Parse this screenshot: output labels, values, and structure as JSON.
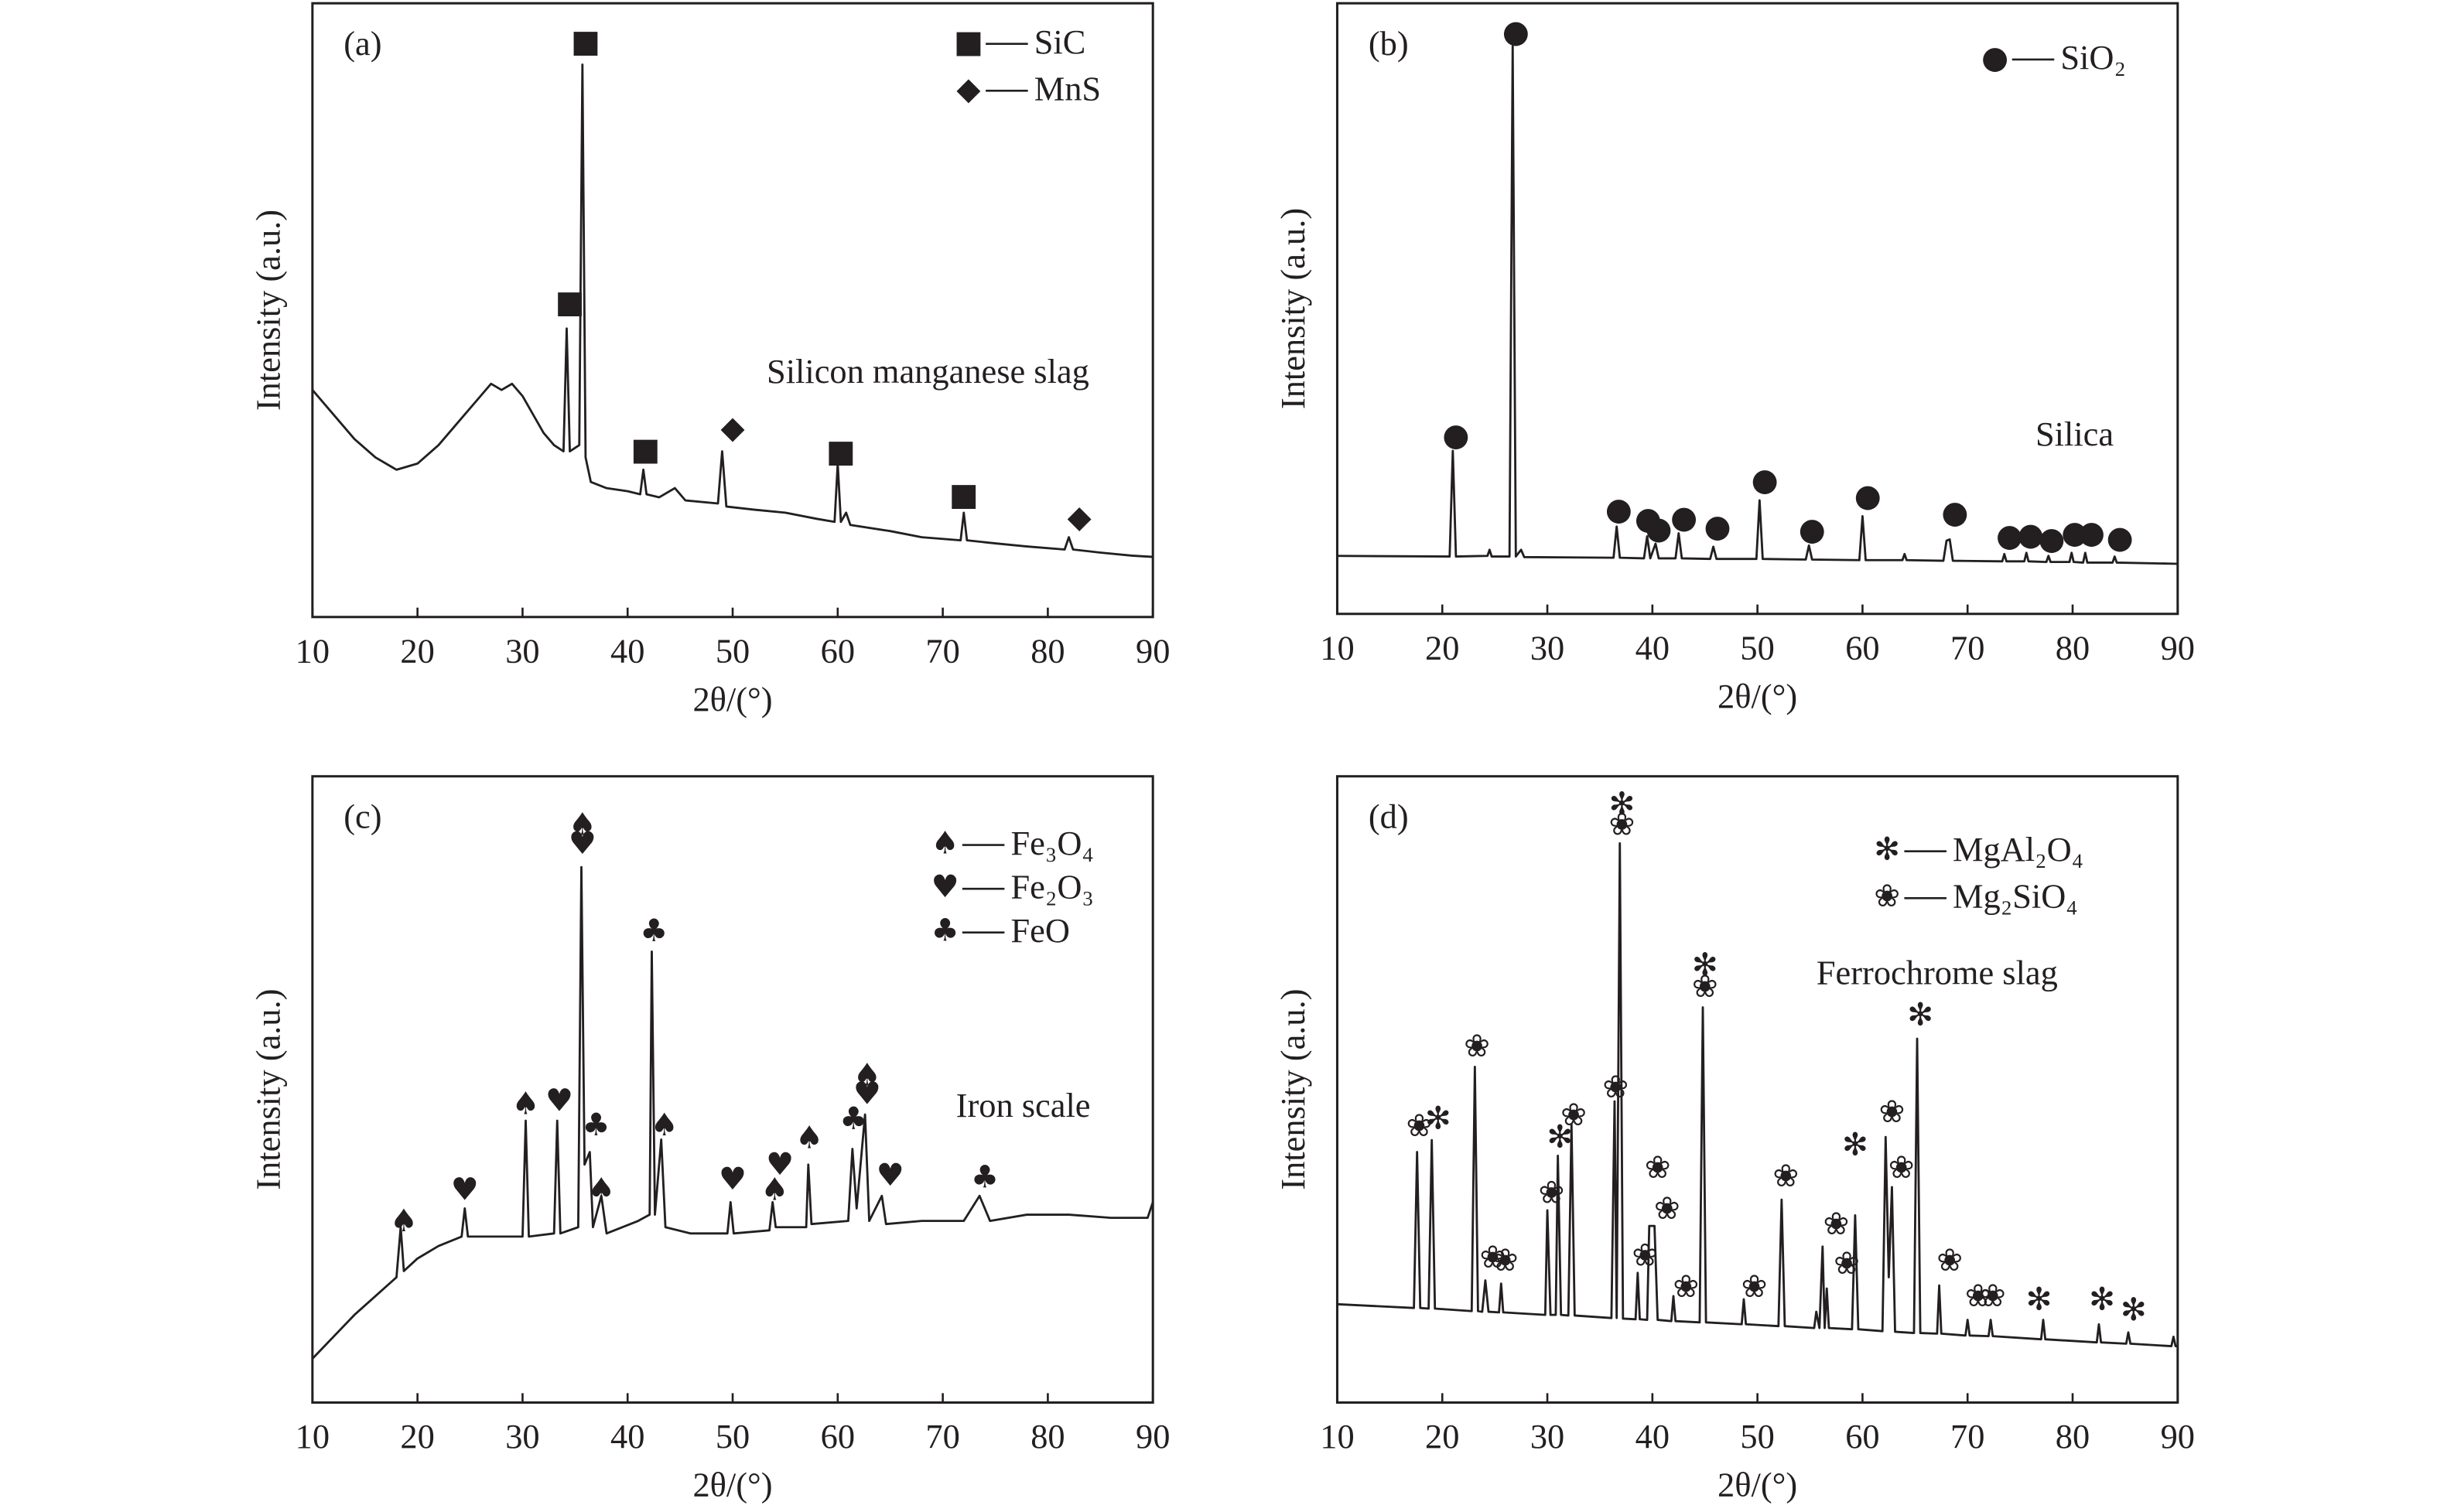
{
  "chart_data": [
    {
      "type": "line",
      "panel": "(a)",
      "annotation": "Silicon manganese slag",
      "xlabel": "2θ/(°)",
      "ylabel": "Intensity (a.u.)",
      "xlim": [
        10,
        90
      ],
      "xticks": [
        10,
        20,
        30,
        40,
        50,
        60,
        70,
        80,
        90
      ],
      "ylim": [
        0,
        100
      ],
      "color": "#231f20",
      "x": [
        10,
        12,
        14,
        16,
        18,
        20,
        22,
        24,
        26,
        27,
        28,
        29,
        30,
        31,
        32,
        33,
        33.9,
        34.2,
        34.5,
        35.4,
        35.7,
        36,
        36.5,
        38,
        40,
        41.2,
        41.5,
        41.8,
        43,
        44.5,
        45.5,
        48.6,
        49,
        49.4,
        52,
        55,
        58,
        59.7,
        60,
        60.3,
        60.8,
        61.2,
        65,
        68,
        71.7,
        72,
        72.3,
        75,
        78,
        81.6,
        82,
        82.4,
        85,
        88,
        90
      ],
      "values": [
        37,
        33,
        29,
        26,
        24,
        25,
        28,
        32,
        36,
        38,
        37,
        38,
        36,
        33,
        30,
        28,
        27,
        47,
        27,
        28,
        90,
        26,
        22,
        21,
        20.5,
        20,
        24,
        20,
        19.5,
        21,
        19,
        18.5,
        27,
        18,
        17.5,
        17,
        16,
        15.5,
        25,
        15.5,
        17,
        15,
        14,
        13,
        12.5,
        17,
        12.5,
        12,
        11.5,
        11,
        13,
        11,
        10.5,
        10,
        9.8
      ],
      "phases": [
        {
          "symbol": "■",
          "name": "SiC",
          "peaks_x": [
            34.5,
            36,
            41.7,
            60.3,
            72
          ],
          "peaks_y": [
            51,
            93.5,
            27,
            26.7,
            19.6
          ]
        },
        {
          "symbol": "◆",
          "name": "MnS",
          "peaks_x": [
            50,
            83
          ],
          "peaks_y": [
            30.5,
            16
          ]
        }
      ]
    },
    {
      "type": "line",
      "panel": "(b)",
      "annotation": "Silica",
      "xlabel": "2θ/(°)",
      "ylabel": "Intensity (a.u.)",
      "xlim": [
        10,
        90
      ],
      "xticks": [
        10,
        20,
        30,
        40,
        50,
        60,
        70,
        80,
        90
      ],
      "ylim": [
        0,
        100
      ],
      "color": "#231f20",
      "x": [
        10,
        20.7,
        21,
        21.3,
        24.3,
        24.5,
        24.7,
        26.4,
        26.7,
        27,
        27.5,
        27.8,
        36.3,
        36.6,
        36.9,
        39.2,
        39.5,
        39.8,
        40.3,
        40.6,
        42.2,
        42.5,
        42.8,
        45.5,
        45.8,
        46.1,
        49.9,
        50.2,
        50.5,
        54.6,
        54.9,
        55.2,
        59.7,
        60,
        60.3,
        63.8,
        64,
        64.2,
        67.7,
        68,
        68.3,
        68.6,
        73.3,
        73.5,
        73.7,
        75.4,
        75.6,
        75.8,
        77.5,
        77.7,
        77.9,
        79.7,
        79.9,
        80.1,
        81,
        81.2,
        81.4,
        83.8,
        84,
        84.2,
        90
      ],
      "values": [
        9.5,
        9.4,
        26.7,
        9.4,
        9.5,
        10.5,
        9.4,
        9.4,
        93,
        9.4,
        10.5,
        9.3,
        9.2,
        14.3,
        9.2,
        9.1,
        12.7,
        9.1,
        11.5,
        9.1,
        9.1,
        13.2,
        9.1,
        9,
        11,
        9,
        9,
        18.6,
        9,
        8.9,
        11.2,
        8.9,
        8.8,
        16,
        8.8,
        8.8,
        9.8,
        8.8,
        8.7,
        12,
        12.2,
        8.7,
        8.6,
        9.8,
        8.6,
        8.6,
        10,
        8.6,
        8.5,
        9.5,
        8.5,
        8.5,
        10,
        8.5,
        8.4,
        10,
        8.4,
        8.4,
        9.4,
        8.4,
        8.2
      ],
      "phases": [
        {
          "symbol": "●",
          "name": "SiO₂",
          "peaks_x": [
            21.3,
            27,
            36.8,
            39.6,
            40.6,
            43,
            46.2,
            50.7,
            55.2,
            60.5,
            68.8,
            74,
            76,
            78,
            80.2,
            81.8,
            84.5
          ],
          "peaks_y": [
            29,
            95,
            16.8,
            15.3,
            13.7,
            15.5,
            14,
            21.6,
            13.5,
            19,
            16.3,
            12.5,
            12.7,
            12,
            13,
            13,
            12.2
          ]
        }
      ]
    },
    {
      "type": "line",
      "panel": "(c)",
      "annotation": "Iron scale",
      "xlabel": "2θ/(°)",
      "ylabel": "Intensity (a.u.)",
      "xlim": [
        10,
        90
      ],
      "xticks": [
        10,
        20,
        30,
        40,
        50,
        60,
        70,
        80,
        90
      ],
      "ylim": [
        0,
        100
      ],
      "color": "#231f20",
      "x": [
        10,
        12,
        14,
        16,
        18,
        18.4,
        18.7,
        20,
        22,
        24.2,
        24.5,
        24.8,
        27,
        30,
        30.3,
        30.6,
        33,
        33.3,
        33.6,
        35.3,
        35.6,
        35.9,
        36.4,
        36.7,
        37.5,
        38,
        41,
        42.1,
        42.3,
        42.6,
        43.2,
        43.6,
        46,
        49.5,
        49.8,
        50.1,
        53.5,
        53.8,
        54.1,
        57,
        57.2,
        57.5,
        61,
        61.4,
        61.8,
        62.6,
        63,
        64.2,
        64.6,
        68,
        72,
        73.5,
        74.5,
        78,
        82,
        86,
        89.5,
        90
      ],
      "values": [
        7,
        10.5,
        14,
        17,
        20,
        28,
        21,
        23,
        25,
        26.5,
        31,
        26.5,
        26.5,
        26.5,
        45,
        26.5,
        27,
        45,
        27,
        28,
        85.5,
        38,
        40,
        28,
        33,
        27,
        29,
        30,
        72,
        30,
        42,
        28,
        27,
        27,
        32,
        27,
        27.5,
        32,
        28,
        28,
        38,
        28.5,
        29,
        40.5,
        31,
        46,
        29,
        33,
        28.5,
        29,
        29,
        33,
        29,
        30,
        30,
        29.5,
        29.5,
        32
      ],
      "phases": [
        {
          "symbol": "♠",
          "name": "Fe₃O₄",
          "peaks_x": [
            18.7,
            30.3,
            35.7,
            37.5,
            43.5,
            54,
            57.3,
            62.8
          ],
          "peaks_y": [
            28.7,
            47.4,
            92,
            33.7,
            44,
            33.7,
            42,
            52
          ]
        },
        {
          "symbol": "♥",
          "name": "Fe₂O₃",
          "peaks_x": [
            24.5,
            33.5,
            35.7,
            50,
            54.5,
            62.8,
            65
          ],
          "peaks_y": [
            33.7,
            47.9,
            89,
            35.4,
            37.7,
            49,
            36
          ]
        },
        {
          "symbol": "♣",
          "name": "FeO",
          "peaks_x": [
            37,
            42.5,
            61.5,
            74
          ],
          "peaks_y": [
            44,
            75,
            45,
            35.7
          ]
        }
      ]
    },
    {
      "type": "line",
      "panel": "(d)",
      "annotation": "Ferrochrome slag",
      "xlabel": "2θ/(°)",
      "ylabel": "Intensity (a.u.)",
      "xlim": [
        10,
        90
      ],
      "xticks": [
        10,
        20,
        30,
        40,
        50,
        60,
        70,
        80,
        90
      ],
      "ylim": [
        0,
        100
      ],
      "color": "#231f20",
      "x": [
        10,
        17.3,
        17.6,
        17.9,
        18.7,
        19,
        19.3,
        22.8,
        23.1,
        23.4,
        23.8,
        24.1,
        24.4,
        25.4,
        25.6,
        25.8,
        29.8,
        30,
        30.3,
        30.8,
        31,
        31.3,
        32,
        32.3,
        32.6,
        36.1,
        36.4,
        36.6,
        36.9,
        37.2,
        38.4,
        38.6,
        38.8,
        39.5,
        39.7,
        40.2,
        40.5,
        41.8,
        42,
        42.2,
        44.5,
        44.8,
        45.1,
        48.5,
        48.7,
        48.9,
        52,
        52.3,
        52.6,
        55.4,
        55.6,
        55.9,
        56.2,
        56.4,
        56.6,
        56.8,
        59,
        59.3,
        59.6,
        61.9,
        62.2,
        62.5,
        62.8,
        63.1,
        64.9,
        65.2,
        65.5,
        67.1,
        67.3,
        67.5,
        69.8,
        70,
        70.2,
        72,
        72.2,
        72.4,
        77,
        77.2,
        77.4,
        82.3,
        82.5,
        82.7,
        85.1,
        85.3,
        85.5,
        89.4,
        89.6,
        89.8,
        90
      ],
      "values": [
        15.7,
        15.1,
        40,
        15.1,
        15,
        41.9,
        15,
        14.6,
        53.6,
        14.6,
        14.5,
        19.5,
        14.5,
        14.4,
        19,
        14.4,
        14,
        30.7,
        14,
        14,
        39.4,
        14,
        13.9,
        44.4,
        13.9,
        13.5,
        48.1,
        13.5,
        89.3,
        13.4,
        13.3,
        20.7,
        13.3,
        13.2,
        28.2,
        28.2,
        13.2,
        13,
        17,
        13,
        12.8,
        63.1,
        12.8,
        12.5,
        16.5,
        12.5,
        12.2,
        32.4,
        12.2,
        11.9,
        14.5,
        11.9,
        24.9,
        11.9,
        18.2,
        11.9,
        11.7,
        29.9,
        11.7,
        11.4,
        42.4,
        20,
        34.4,
        11.3,
        11.1,
        58.1,
        11.1,
        11,
        18.7,
        11,
        10.7,
        13.2,
        10.7,
        10.6,
        13.2,
        10.6,
        10.1,
        13.2,
        10.1,
        9.6,
        12.5,
        9.6,
        9.4,
        11.2,
        9.4,
        9,
        10.5,
        9,
        9
      ],
      "phases": [
        {
          "symbol": "✻",
          "name": "MgAl₂O₄",
          "peaks_x": [
            19.6,
            31.2,
            37.1,
            45,
            59.3,
            65.5,
            76.8,
            82.8,
            85.8
          ],
          "peaks_y": [
            45.1,
            42.1,
            95.3,
            69.6,
            40.9,
            61.6,
            16.2,
            16.2,
            14.5
          ]
        },
        {
          "symbol": "❀",
          "name": "Mg₂SiO₄",
          "peaks_x": [
            17.8,
            23.3,
            24.8,
            26,
            30.4,
            32.5,
            36.5,
            37.1,
            39.3,
            40.5,
            41.4,
            43.2,
            45,
            49.7,
            52.7,
            57.5,
            58.5,
            62.8,
            63.7,
            68.3,
            71,
            72.4
          ],
          "peaks_y": [
            43.9,
            56.6,
            22.9,
            22.4,
            33.2,
            45.6,
            50.1,
            92,
            23.2,
            37.2,
            30.7,
            18.2,
            66.1,
            18.2,
            35.9,
            28.2,
            21.9,
            46.1,
            37.2,
            22.4,
            16.7,
            16.7
          ]
        }
      ]
    }
  ]
}
